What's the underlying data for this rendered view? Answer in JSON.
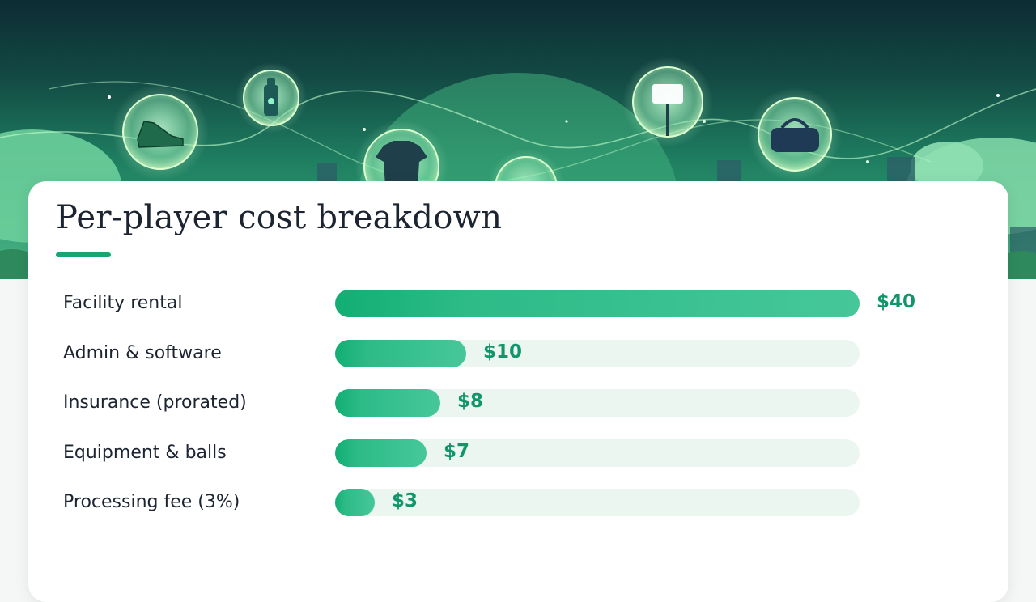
{
  "colors": {
    "accent": "#17a673",
    "bar_fill": "#2dbb88",
    "bar_track": "#ebf6f1",
    "value_text": "#12956a",
    "title_text": "#1b2430"
  },
  "hero": {
    "icons": [
      "cleat-icon",
      "water-bottle-icon",
      "jersey-icon",
      "soccer-ball-icon",
      "stadium-light-icon",
      "duffel-bag-icon"
    ]
  },
  "card": {
    "title": "Per-player cost breakdown"
  },
  "chart_data": {
    "type": "bar",
    "orientation": "horizontal",
    "title": "Per-player cost breakdown",
    "categories": [
      "Facility rental",
      "Admin & software",
      "Insurance (prorated)",
      "Equipment & balls",
      "Processing fee (3%)"
    ],
    "values": [
      40,
      10,
      8,
      7,
      3
    ],
    "value_labels": [
      "$40",
      "$10",
      "$8",
      "$7",
      "$3"
    ],
    "xlim": [
      0,
      40
    ],
    "grid": false,
    "legend": "none"
  }
}
